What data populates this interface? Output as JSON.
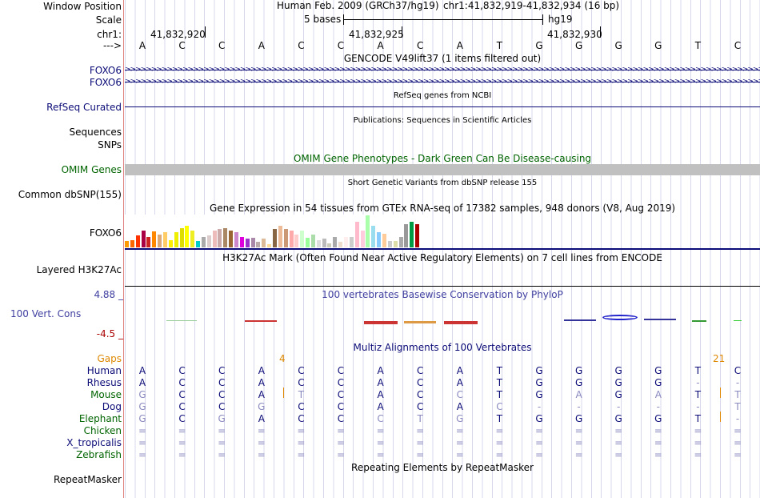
{
  "header": {
    "window_position_label": "Window Position",
    "assembly": "Human Feb. 2009 (GRCh37/hg19)",
    "position": "chr1:41,832,919-41,832,934 (16 bp)",
    "scale_label": "Scale",
    "scale_text": "5 bases",
    "scale_db": "hg19",
    "chrom_label": "chr1:",
    "ticks": [
      "41,832,920",
      "41,832,925",
      "41,832,930"
    ],
    "strand_label": "--->"
  },
  "bases": [
    "A",
    "C",
    "C",
    "A",
    "C",
    "C",
    "A",
    "C",
    "A",
    "T",
    "G",
    "G",
    "G",
    "G",
    "T",
    "C"
  ],
  "tracks": {
    "gencode": {
      "title": "GENCODE V49lift37 (1 items filtered out)",
      "items": [
        "FOXO6",
        "FOXO6"
      ]
    },
    "refseq": {
      "title": "RefSeq genes from NCBI",
      "label": "RefSeq Curated"
    },
    "publications": {
      "title": "Publications: Sequences in Scientific Articles",
      "labels": [
        "Sequences",
        "SNPs"
      ]
    },
    "omim": {
      "title": "OMIM Gene Phenotypes - Dark Green Can Be Disease-causing",
      "label": "OMIM Genes"
    },
    "dbsnp": {
      "title": "Short Genetic Variants from dbSNP release 155",
      "label": "Common dbSNP(155)"
    },
    "gtex": {
      "title": "Gene Expression in 54 tissues from GTEx RNA-seq of 17382 samples, 948 donors (V8, Aug 2019)",
      "label": "FOXO6",
      "expression": [
        0.3,
        0.35,
        0.55,
        0.8,
        0.5,
        0.75,
        0.6,
        0.7,
        0.35,
        0.7,
        0.9,
        1.0,
        0.8,
        0.3,
        0.5,
        0.55,
        0.8,
        0.85,
        0.9,
        0.8,
        0.7,
        0.5,
        0.4,
        0.45,
        0.25,
        0.4,
        0.15,
        0.85,
        1.0,
        0.85,
        0.8,
        0.6,
        0.8,
        0.45,
        0.6,
        0.35,
        0.4,
        0.2,
        0.5,
        0.25,
        0.5,
        0.5,
        1.2,
        0.8,
        1.5,
        1.0,
        0.7,
        0.65,
        0.3,
        0.3,
        0.5,
        1.1,
        1.2,
        1.1
      ],
      "colors": [
        "#ff9900",
        "#ff6600",
        "#ff3300",
        "#aa0044",
        "#cc2222",
        "#ff8800",
        "#ddaa77",
        "#ffcc66",
        "#ffee00",
        "#eeee00",
        "#dddd00",
        "#ffff00",
        "#eeee22",
        "#00cccc",
        "#aaaaaa",
        "#ddcccc",
        "#eebbbb",
        "#ccaaaa",
        "#aa8866",
        "#996633",
        "#cc88cc",
        "#dd00dd",
        "#9933cc",
        "#aa88aa",
        "#bbaaaa",
        "#ddbb99",
        "#ffdd99",
        "#886644",
        "#eebb99",
        "#cc9977",
        "#ffaaaa",
        "#ffcccc",
        "#ccffcc",
        "#99ff99",
        "#aaddaa",
        "#dddddd",
        "#bbbbbb",
        "#ccccbb",
        "#aaaaaa",
        "#eeddcc",
        "#ffeeee",
        "#cccccc",
        "#ffbbcc",
        "#ffccdd",
        "#aaffaa",
        "#99ddee",
        "#88ccff",
        "#ffcc99",
        "#cccccc",
        "#ddddaa",
        "#aaaaaa",
        "#999999",
        "#009944",
        "#aa0000"
      ]
    },
    "h3k27ac": {
      "title": "H3K27Ac Mark (Often Found Near Active Regulatory Elements) on 7 cell lines from ENCODE",
      "label": "Layered H3K27Ac"
    },
    "conservation": {
      "title": "100 vertebrates Basewise Conservation by PhyloP",
      "label": "100 Vert. Cons",
      "max": "4.88 _",
      "min": "-4.5 _"
    },
    "multiz": {
      "title": "Multiz Alignments of 100 Vertebrates",
      "gaps_label": "Gaps",
      "gap_counts": [
        "4",
        "21"
      ],
      "species": [
        {
          "name": "Human",
          "seq": [
            "A",
            "C",
            "C",
            "A",
            "C",
            "C",
            "A",
            "C",
            "A",
            "T",
            "G",
            "G",
            "G",
            "G",
            "T",
            "C"
          ]
        },
        {
          "name": "Rhesus",
          "seq": [
            "A",
            "C",
            "C",
            "A",
            "C",
            "C",
            "A",
            "C",
            "A",
            "T",
            "G",
            "G",
            "G",
            "G",
            "-",
            "-"
          ]
        },
        {
          "name": "Mouse",
          "seq": [
            "G",
            "C",
            "C",
            "A",
            "T",
            "C",
            "A",
            "C",
            "C",
            "T",
            "G",
            "A",
            "G",
            "A",
            "T",
            "T"
          ]
        },
        {
          "name": "Dog",
          "seq": [
            "G",
            "C",
            "C",
            "G",
            "C",
            "C",
            "A",
            "C",
            "A",
            "C",
            "-",
            "-",
            "-",
            "-",
            "-",
            "T"
          ]
        },
        {
          "name": "Elephant",
          "seq": [
            "G",
            "C",
            "G",
            "A",
            "C",
            "C",
            "C",
            "T",
            "G",
            "T",
            "G",
            "G",
            "G",
            "G",
            "T",
            "-"
          ]
        },
        {
          "name": "Chicken",
          "seq": [
            "=",
            "=",
            "=",
            "=",
            "=",
            "=",
            "=",
            "=",
            "=",
            "=",
            "=",
            "=",
            "=",
            "=",
            "=",
            "="
          ]
        },
        {
          "name": "X_tropicalis",
          "seq": [
            "=",
            "=",
            "=",
            "=",
            "=",
            "=",
            "=",
            "=",
            "=",
            "=",
            "=",
            "=",
            "=",
            "=",
            "=",
            "="
          ]
        },
        {
          "name": "Zebrafish",
          "seq": [
            "=",
            "=",
            "=",
            "=",
            "=",
            "=",
            "=",
            "=",
            "=",
            "=",
            "=",
            "=",
            "=",
            "=",
            "=",
            "="
          ]
        }
      ]
    },
    "repeatmasker": {
      "title": "Repeating Elements by RepeatMasker",
      "label": "RepeatMasker"
    }
  },
  "colors": {
    "track_label": "#0c0c78",
    "omim": "#006400",
    "gaps": "#dd8800",
    "cons": "#3f3fa0",
    "cons_min": "#aa0000",
    "label_sep": "#e08080"
  }
}
